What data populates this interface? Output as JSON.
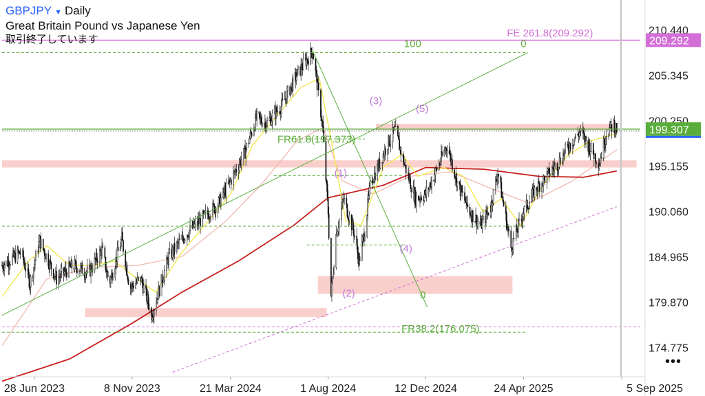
{
  "header": {
    "symbol": "GBPJPY",
    "caret": "▼",
    "timeframe": "Daily",
    "description": "Great Britain Pound vs Japanese Yen",
    "status": "取引終了しています"
  },
  "more_icon": "more-horizontal-icon",
  "colors": {
    "candle": "#111111",
    "ma_short": "#f2e85a",
    "ma_mid": "#f2b8b0",
    "ma_long": "#c8201e",
    "zone": "#f4a8a2",
    "fib_green": "#5aad3a",
    "wave_label": "#c07ad8",
    "fe_line": "#d46fd8",
    "price_badge": "#5aad3a",
    "fe_badge": "#d46fd8"
  },
  "chart_data": {
    "type": "candlestick",
    "title": "GBPJPY Daily",
    "ylim": [
      171.5,
      213.8
    ],
    "y_ticks": [
      "210.440",
      "205.345",
      "200.250",
      "195.155",
      "190.060",
      "184.965",
      "179.870",
      "174.775"
    ],
    "x_ticks": [
      {
        "label": "28 Jun 2023",
        "date": "2023-06-28"
      },
      {
        "label": "8 Nov 2023",
        "date": "2023-11-08"
      },
      {
        "label": "21 Mar 2024",
        "date": "2024-03-21"
      },
      {
        "label": "1 Aug 2024",
        "date": "2024-08-01"
      },
      {
        "label": "12 Dec 2024",
        "date": "2024-12-12"
      },
      {
        "label": "24 Apr 2025",
        "date": "2025-04-24"
      },
      {
        "label": "5 Sep 2025",
        "date": "2025-09-05"
      }
    ],
    "price_path": [
      {
        "date": "2023-05-15",
        "price": 184.0
      },
      {
        "date": "2023-06-10",
        "price": 185.5
      },
      {
        "date": "2023-06-22",
        "price": 182.0
      },
      {
        "date": "2023-07-05",
        "price": 186.8
      },
      {
        "date": "2023-07-28",
        "price": 182.5
      },
      {
        "date": "2023-08-20",
        "price": 184.0
      },
      {
        "date": "2023-09-10",
        "price": 183.2
      },
      {
        "date": "2023-09-28",
        "price": 185.8
      },
      {
        "date": "2023-10-08",
        "price": 182.0
      },
      {
        "date": "2023-10-25",
        "price": 187.0
      },
      {
        "date": "2023-11-05",
        "price": 181.5
      },
      {
        "date": "2023-11-20",
        "price": 182.5
      },
      {
        "date": "2023-12-05",
        "price": 178.5
      },
      {
        "date": "2023-12-28",
        "price": 185.0
      },
      {
        "date": "2024-01-20",
        "price": 187.5
      },
      {
        "date": "2024-02-15",
        "price": 189.5
      },
      {
        "date": "2024-03-05",
        "price": 191.0
      },
      {
        "date": "2024-03-21",
        "price": 193.5
      },
      {
        "date": "2024-04-10",
        "price": 196.8
      },
      {
        "date": "2024-04-25",
        "price": 200.5
      },
      {
        "date": "2024-05-10",
        "price": 200.0
      },
      {
        "date": "2024-05-30",
        "price": 202.0
      },
      {
        "date": "2024-06-20",
        "price": 205.5
      },
      {
        "date": "2024-07-11",
        "price": 208.1
      },
      {
        "date": "2024-07-24",
        "price": 200.0
      },
      {
        "date": "2024-08-01",
        "price": 190.0
      },
      {
        "date": "2024-08-05",
        "price": 180.6
      },
      {
        "date": "2024-08-12",
        "price": 187.5
      },
      {
        "date": "2024-08-22",
        "price": 191.5
      },
      {
        "date": "2024-09-05",
        "price": 187.8
      },
      {
        "date": "2024-09-12",
        "price": 184.5
      },
      {
        "date": "2024-09-20",
        "price": 188.0
      },
      {
        "date": "2024-09-28",
        "price": 193.5
      },
      {
        "date": "2024-10-05",
        "price": 194.5
      },
      {
        "date": "2024-10-20",
        "price": 197.5
      },
      {
        "date": "2024-10-31",
        "price": 199.2
      },
      {
        "date": "2024-11-14",
        "price": 195.0
      },
      {
        "date": "2024-11-28",
        "price": 191.5
      },
      {
        "date": "2024-12-12",
        "price": 192.0
      },
      {
        "date": "2025-01-10",
        "price": 197.5
      },
      {
        "date": "2025-01-25",
        "price": 193.0
      },
      {
        "date": "2025-02-10",
        "price": 190.0
      },
      {
        "date": "2025-02-25",
        "price": 188.5
      },
      {
        "date": "2025-03-10",
        "price": 190.5
      },
      {
        "date": "2025-03-20",
        "price": 194.5
      },
      {
        "date": "2025-04-07",
        "price": 186.0
      },
      {
        "date": "2025-04-24",
        "price": 190.0
      },
      {
        "date": "2025-05-10",
        "price": 192.5
      },
      {
        "date": "2025-05-25",
        "price": 194.0
      },
      {
        "date": "2025-06-10",
        "price": 195.5
      },
      {
        "date": "2025-06-25",
        "price": 197.5
      },
      {
        "date": "2025-07-10",
        "price": 199.0
      },
      {
        "date": "2025-07-25",
        "price": 197.0
      },
      {
        "date": "2025-08-05",
        "price": 195.5
      },
      {
        "date": "2025-08-15",
        "price": 199.0
      },
      {
        "date": "2025-08-25",
        "price": 199.8
      },
      {
        "date": "2025-08-29",
        "price": 199.3
      }
    ],
    "ma_long_path": [
      {
        "date": "2023-05-15",
        "price": 171.0
      },
      {
        "date": "2023-08-15",
        "price": 173.5
      },
      {
        "date": "2023-11-08",
        "price": 177.5
      },
      {
        "date": "2024-01-15",
        "price": 181.0
      },
      {
        "date": "2024-04-01",
        "price": 184.5
      },
      {
        "date": "2024-06-15",
        "price": 188.5
      },
      {
        "date": "2024-08-01",
        "price": 191.6
      },
      {
        "date": "2024-10-15",
        "price": 193.0
      },
      {
        "date": "2024-12-12",
        "price": 195.0
      },
      {
        "date": "2025-03-01",
        "price": 194.8
      },
      {
        "date": "2025-05-15",
        "price": 194.0
      },
      {
        "date": "2025-07-15",
        "price": 193.9
      },
      {
        "date": "2025-08-29",
        "price": 194.6
      }
    ],
    "ma_mid_path": [
      {
        "date": "2023-05-15",
        "price": 175.0
      },
      {
        "date": "2023-07-15",
        "price": 182.5
      },
      {
        "date": "2023-09-15",
        "price": 183.8
      },
      {
        "date": "2023-11-15",
        "price": 184.0
      },
      {
        "date": "2024-01-15",
        "price": 185.0
      },
      {
        "date": "2024-03-15",
        "price": 189.0
      },
      {
        "date": "2024-05-01",
        "price": 193.0
      },
      {
        "date": "2024-06-20",
        "price": 198.0
      },
      {
        "date": "2024-07-25",
        "price": 199.5
      },
      {
        "date": "2024-08-20",
        "price": 193.5
      },
      {
        "date": "2024-10-01",
        "price": 192.0
      },
      {
        "date": "2024-11-20",
        "price": 194.0
      },
      {
        "date": "2025-01-15",
        "price": 194.5
      },
      {
        "date": "2025-03-15",
        "price": 192.5
      },
      {
        "date": "2025-05-01",
        "price": 191.0
      },
      {
        "date": "2025-06-30",
        "price": 193.5
      },
      {
        "date": "2025-08-29",
        "price": 197.0
      }
    ],
    "ma_short_path": [
      {
        "date": "2023-05-15",
        "price": 180.5
      },
      {
        "date": "2023-06-20",
        "price": 184.5
      },
      {
        "date": "2023-07-15",
        "price": 186.2
      },
      {
        "date": "2023-08-15",
        "price": 184.0
      },
      {
        "date": "2023-09-15",
        "price": 184.0
      },
      {
        "date": "2023-10-15",
        "price": 184.5
      },
      {
        "date": "2023-11-15",
        "price": 182.5
      },
      {
        "date": "2023-12-10",
        "price": 181.0
      },
      {
        "date": "2024-01-15",
        "price": 185.5
      },
      {
        "date": "2024-02-20",
        "price": 189.0
      },
      {
        "date": "2024-03-21",
        "price": 192.0
      },
      {
        "date": "2024-04-20",
        "price": 197.5
      },
      {
        "date": "2024-05-25",
        "price": 201.0
      },
      {
        "date": "2024-06-25",
        "price": 204.0
      },
      {
        "date": "2024-07-20",
        "price": 205.0
      },
      {
        "date": "2024-08-10",
        "price": 196.0
      },
      {
        "date": "2024-08-25",
        "price": 189.0
      },
      {
        "date": "2024-09-15",
        "price": 188.5
      },
      {
        "date": "2024-10-15",
        "price": 195.0
      },
      {
        "date": "2024-11-10",
        "price": 196.5
      },
      {
        "date": "2024-12-01",
        "price": 194.0
      },
      {
        "date": "2025-01-05",
        "price": 195.0
      },
      {
        "date": "2025-02-01",
        "price": 194.0
      },
      {
        "date": "2025-02-28",
        "price": 190.0
      },
      {
        "date": "2025-03-25",
        "price": 191.5
      },
      {
        "date": "2025-04-20",
        "price": 188.5
      },
      {
        "date": "2025-05-20",
        "price": 193.0
      },
      {
        "date": "2025-06-25",
        "price": 196.5
      },
      {
        "date": "2025-07-25",
        "price": 198.0
      },
      {
        "date": "2025-08-29",
        "price": 198.8
      }
    ],
    "zones": [
      {
        "x1": "2023-09-05",
        "x2": "2024-07-30",
        "y1": 178.2,
        "y2": 179.2
      },
      {
        "x1": "2024-07-18",
        "x2": "2025-04-09",
        "y1": 180.8,
        "y2": 182.8
      },
      {
        "x1": "2023-05-15",
        "x2": "2025-09-25",
        "y1": 195.0,
        "y2": 195.8
      },
      {
        "x1": "2024-10-05",
        "x2": "2025-08-25",
        "y1": 199.2,
        "y2": 199.9
      }
    ],
    "horizontal_lines": [
      {
        "price": 209.292,
        "x1": "2023-05-15",
        "x2": "2025-09-30",
        "style": "solid",
        "color": "fe_line"
      },
      {
        "price": 207.9,
        "x1": "2023-05-15",
        "x2": "2025-04-27",
        "style": "dashed",
        "color": "fib_green"
      },
      {
        "price": 199.307,
        "x1": "2023-05-15",
        "x2": "2025-09-30",
        "style": "solid",
        "color": "fib_green"
      },
      {
        "price": 199.1,
        "x1": "2023-05-15",
        "x2": "2025-09-30",
        "style": "dotted",
        "color": "candle"
      },
      {
        "price": 198.2,
        "x1": "2024-06-11",
        "x2": "2024-09-20",
        "style": "dashed",
        "color": "fib_green"
      },
      {
        "price": 194.1,
        "x1": "2024-05-19",
        "x2": "2024-11-10",
        "style": "dashed",
        "color": "fib_green"
      },
      {
        "price": 188.4,
        "x1": "2023-05-15",
        "x2": "2025-04-27",
        "style": "dashed",
        "color": "fib_green"
      },
      {
        "price": 186.3,
        "x1": "2024-07-03",
        "x2": "2024-11-14",
        "style": "dashed",
        "color": "fib_green"
      },
      {
        "price": 177.1,
        "x1": "2023-05-15",
        "x2": "2025-09-30",
        "style": "dashed",
        "color": "fe_line"
      },
      {
        "price": 176.5,
        "x1": "2023-05-15",
        "x2": "2025-04-27",
        "style": "dashed",
        "color": "fib_green"
      }
    ],
    "trend_lines": [
      {
        "x1": "2023-05-15",
        "y1": 178.4,
        "x2": "2025-04-30",
        "y2": 207.9,
        "style": "solid",
        "color": "fib_green"
      },
      {
        "x1": "2024-07-11",
        "y1": 208.1,
        "x2": "2024-12-14",
        "y2": 179.3,
        "style": "solid",
        "color": "fib_green"
      },
      {
        "x1": "2024-01-02",
        "y1": 172.0,
        "x2": "2025-08-29",
        "y2": 190.6,
        "style": "dashed",
        "color": "fe_line"
      }
    ],
    "fib_labels": [
      {
        "text": "100",
        "date": "2024-11-24",
        "price": 208.5,
        "color": "fib_green"
      },
      {
        "text": "0",
        "date": "2025-04-24",
        "price": 208.5,
        "color": "fib_green"
      },
      {
        "text": "0",
        "date": "2024-12-08",
        "price": 180.3,
        "color": "fib_green"
      },
      {
        "text": "FR61.8(197.373)",
        "date": "2024-07-16",
        "price": 197.8,
        "color": "fib_green"
      },
      {
        "text": "FR38.2(176.075)",
        "date": "2025-01-01",
        "price": 176.5,
        "color": "fib_green"
      },
      {
        "text": "FE 261.8(209.292)",
        "date": "2025-05-30",
        "price": 209.7,
        "color": "fe_line"
      }
    ],
    "wave_labels": [
      {
        "text": "(1)",
        "date": "2024-08-18",
        "price": 194.0
      },
      {
        "text": "(2)",
        "date": "2024-08-29",
        "price": 180.5
      },
      {
        "text": "(3)",
        "date": "2024-10-05",
        "price": 202.1
      },
      {
        "text": "(4)",
        "date": "2024-11-15",
        "price": 185.5
      },
      {
        "text": "(5)",
        "date": "2024-12-07",
        "price": 201.2
      }
    ],
    "price_badges": [
      {
        "text": "209.292",
        "price": 209.292,
        "color": "fe_badge"
      },
      {
        "text": "199.307",
        "price": 199.307,
        "color": "price_badge"
      }
    ],
    "current_marker_date": "2025-08-29"
  }
}
